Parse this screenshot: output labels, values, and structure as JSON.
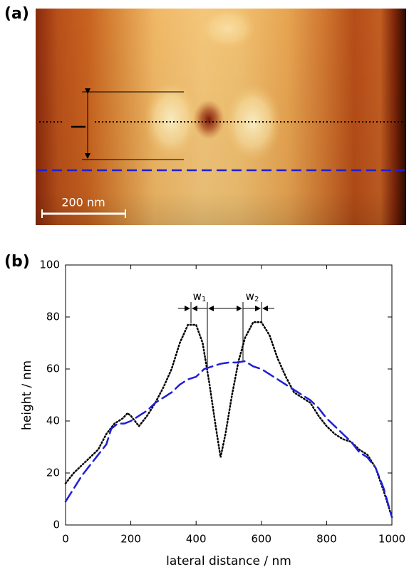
{
  "chart_data": {
    "type": "line",
    "panel_label": "(b)",
    "x_label": "lateral distance / nm",
    "y_label": "height / nm",
    "xlim": [
      0,
      1000
    ],
    "ylim": [
      0,
      100
    ],
    "xticks": [
      0,
      200,
      400,
      600,
      800,
      1000
    ],
    "yticks": [
      0,
      20,
      40,
      60,
      80,
      100
    ],
    "annotations": [
      {
        "base": "w",
        "sub": "1"
      },
      {
        "base": "w",
        "sub": "2"
      }
    ],
    "series": [
      {
        "color": "#000000",
        "style": "dotted",
        "x": [
          0,
          25,
          50,
          75,
          100,
          125,
          150,
          175,
          190,
          200,
          225,
          250,
          275,
          300,
          325,
          350,
          375,
          400,
          420,
          440,
          460,
          475,
          490,
          510,
          530,
          550,
          575,
          600,
          625,
          650,
          675,
          700,
          725,
          750,
          775,
          800,
          825,
          850,
          875,
          900,
          925,
          950,
          975,
          1000
        ],
        "values": [
          16,
          20,
          23,
          26,
          29,
          35,
          39,
          41,
          43,
          42,
          38,
          42,
          47,
          53,
          60,
          70,
          77,
          77,
          70,
          55,
          38,
          26,
          35,
          50,
          63,
          72,
          78,
          78,
          73,
          64,
          57,
          51,
          49,
          47,
          42,
          38,
          35,
          33,
          32,
          29,
          27,
          22,
          13,
          3
        ]
      },
      {
        "color": "#1f1fd6",
        "style": "dashed",
        "x": [
          0,
          25,
          50,
          75,
          100,
          125,
          140,
          160,
          180,
          200,
          225,
          250,
          275,
          300,
          325,
          350,
          375,
          400,
          425,
          450,
          475,
          500,
          525,
          550,
          575,
          600,
          625,
          650,
          675,
          700,
          725,
          750,
          775,
          800,
          825,
          850,
          875,
          900,
          925,
          950,
          975,
          1000
        ],
        "values": [
          9,
          14,
          19,
          23,
          27,
          31,
          37,
          39,
          39,
          40,
          42,
          44,
          47,
          49,
          51,
          54,
          56,
          57,
          60,
          61,
          62,
          62.5,
          62.5,
          63,
          61,
          60,
          58,
          56,
          54,
          52,
          50,
          48,
          45,
          41,
          38,
          35,
          32,
          28,
          26,
          22,
          14,
          3
        ]
      }
    ]
  },
  "image_panel": {
    "panel_label": "(a)",
    "scale_bar": "200 nm"
  }
}
